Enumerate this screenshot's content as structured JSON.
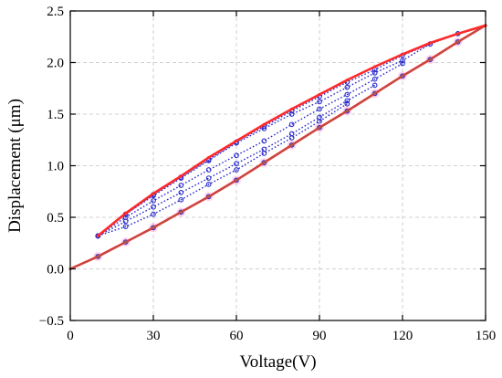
{
  "chart_data": {
    "type": "line",
    "title": "",
    "xlabel": "Voltage(V)",
    "ylabel": "Displacement (μm)",
    "xlim": [
      0,
      150
    ],
    "ylim": [
      -0.5,
      2.5
    ],
    "xticks": [
      0,
      30,
      60,
      90,
      120,
      150
    ],
    "xtick_labels": [
      "0",
      "30",
      "60",
      "90",
      "120",
      "150"
    ],
    "yticks": [
      -0.5,
      0.0,
      0.5,
      1.0,
      1.5,
      2.0,
      2.5
    ],
    "ytick_labels": [
      "−0.5",
      "0.0",
      "0.5",
      "1.0",
      "1.5",
      "2.0",
      "2.5"
    ],
    "grid": true,
    "legend": "none",
    "colors": {
      "outer": "#ff2a2a",
      "outer_lower": "#a05a50",
      "inner": "#2a2acc",
      "marker_lower": "#ffb3d9"
    },
    "series": [
      {
        "style": "outer-ascending",
        "x": [
          0,
          10,
          20,
          30,
          40,
          50,
          60,
          70,
          80,
          90,
          100,
          110,
          120,
          130,
          140,
          150
        ],
        "y": [
          0.0,
          0.12,
          0.26,
          0.4,
          0.55,
          0.7,
          0.86,
          1.03,
          1.2,
          1.37,
          1.53,
          1.7,
          1.87,
          2.03,
          2.2,
          2.36
        ]
      },
      {
        "style": "outer-descending",
        "x": [
          150,
          140,
          130,
          120,
          110,
          100,
          90,
          80,
          70,
          60,
          50,
          40,
          30,
          20,
          10
        ],
        "y": [
          2.36,
          2.28,
          2.19,
          2.08,
          1.96,
          1.83,
          1.69,
          1.55,
          1.4,
          1.24,
          1.08,
          0.9,
          0.73,
          0.54,
          0.32
        ]
      },
      {
        "style": "inner-descending",
        "x": [
          140,
          130,
          120,
          110,
          100,
          90,
          80,
          70,
          60,
          50,
          40,
          30,
          20,
          10
        ],
        "y": [
          2.28,
          2.18,
          2.07,
          1.93,
          1.81,
          1.67,
          1.53,
          1.38,
          1.23,
          1.06,
          0.89,
          0.72,
          0.53,
          0.32
        ]
      },
      {
        "style": "inner-descending",
        "x": [
          130,
          120,
          110,
          100,
          90,
          80,
          70,
          60,
          50,
          40,
          30,
          20,
          10
        ],
        "y": [
          2.18,
          2.02,
          1.9,
          1.76,
          1.62,
          1.5,
          1.36,
          1.22,
          1.05,
          0.88,
          0.71,
          0.53,
          0.32
        ]
      },
      {
        "style": "inner-descending",
        "x": [
          120,
          110,
          100,
          90,
          80,
          70,
          60,
          50,
          40,
          30,
          20,
          10
        ],
        "y": [
          1.99,
          1.84,
          1.69,
          1.55,
          1.4,
          1.24,
          1.1,
          0.96,
          0.81,
          0.66,
          0.5,
          0.32
        ]
      },
      {
        "style": "inner-descending",
        "x": [
          110,
          100,
          90,
          80,
          70,
          60,
          50,
          40,
          30,
          20,
          10
        ],
        "y": [
          1.78,
          1.63,
          1.47,
          1.31,
          1.16,
          1.02,
          0.88,
          0.74,
          0.6,
          0.46,
          0.32
        ]
      },
      {
        "style": "inner-descending",
        "x": [
          100,
          90,
          80,
          70,
          60,
          50,
          40,
          30,
          20,
          10
        ],
        "y": [
          1.6,
          1.43,
          1.27,
          1.12,
          0.96,
          0.82,
          0.67,
          0.53,
          0.41,
          0.32
        ]
      },
      {
        "style": "inner-ascending",
        "x": [
          0,
          10,
          20,
          30,
          40,
          50,
          60,
          70,
          80,
          90,
          100,
          110,
          120,
          130,
          140
        ],
        "y": [
          0.0,
          0.12,
          0.26,
          0.4,
          0.55,
          0.7,
          0.86,
          1.03,
          1.2,
          1.37,
          1.53,
          1.7,
          1.87,
          2.03,
          2.2
        ]
      }
    ]
  }
}
